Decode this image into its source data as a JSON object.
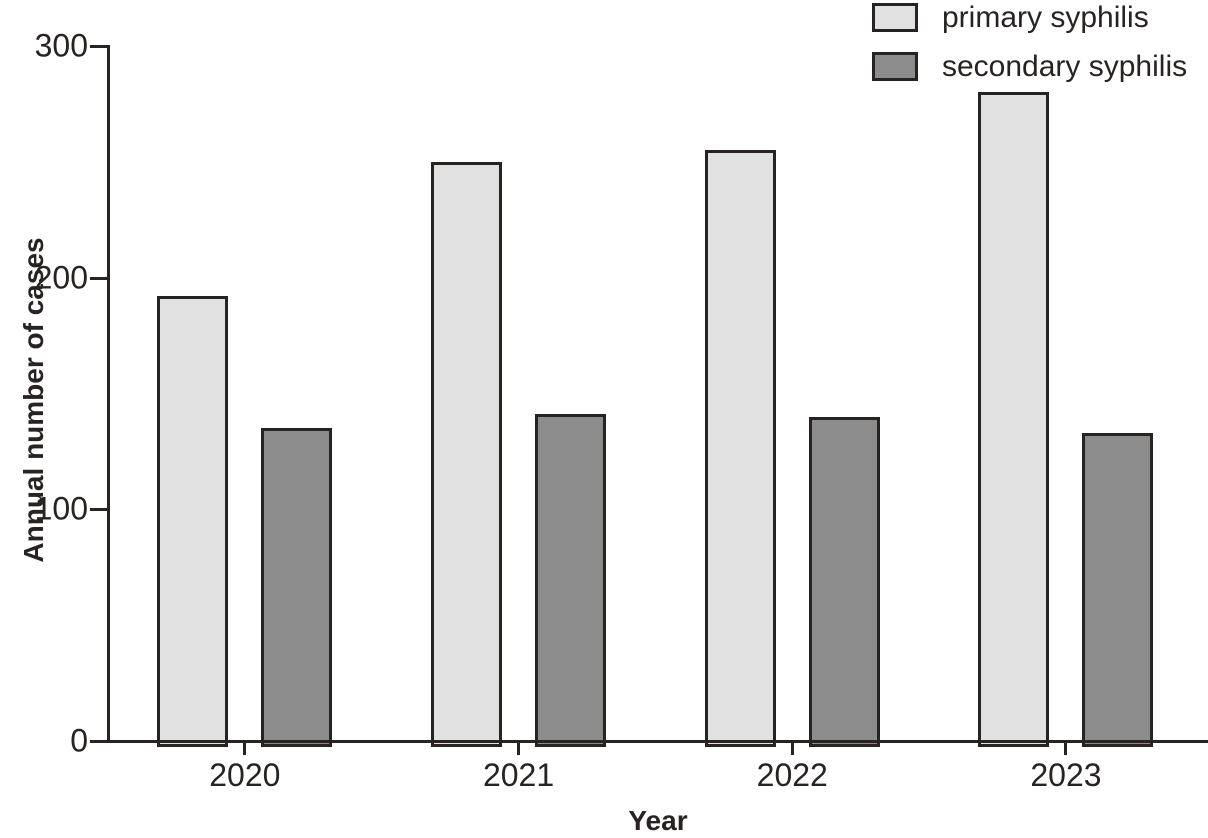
{
  "chart_data": {
    "type": "bar",
    "title": "",
    "categories": [
      "2020",
      "2021",
      "2022",
      "2023"
    ],
    "series": [
      {
        "name": "primary syphilis",
        "color": "#e1e1e1",
        "values": [
          192,
          250,
          255,
          280
        ]
      },
      {
        "name": "secondary syphilis",
        "color": "#8c8c8c",
        "values": [
          135,
          141,
          140,
          133
        ]
      }
    ],
    "xlabel": "Year",
    "ylabel": "Annual number of cases",
    "ylim": [
      0,
      300
    ],
    "yticks": [
      0,
      100,
      200,
      300
    ],
    "grid": false,
    "legend_position": "top-right",
    "axis_color": "#282221",
    "text_color": "#282221",
    "bar_border_color": "#282221"
  }
}
